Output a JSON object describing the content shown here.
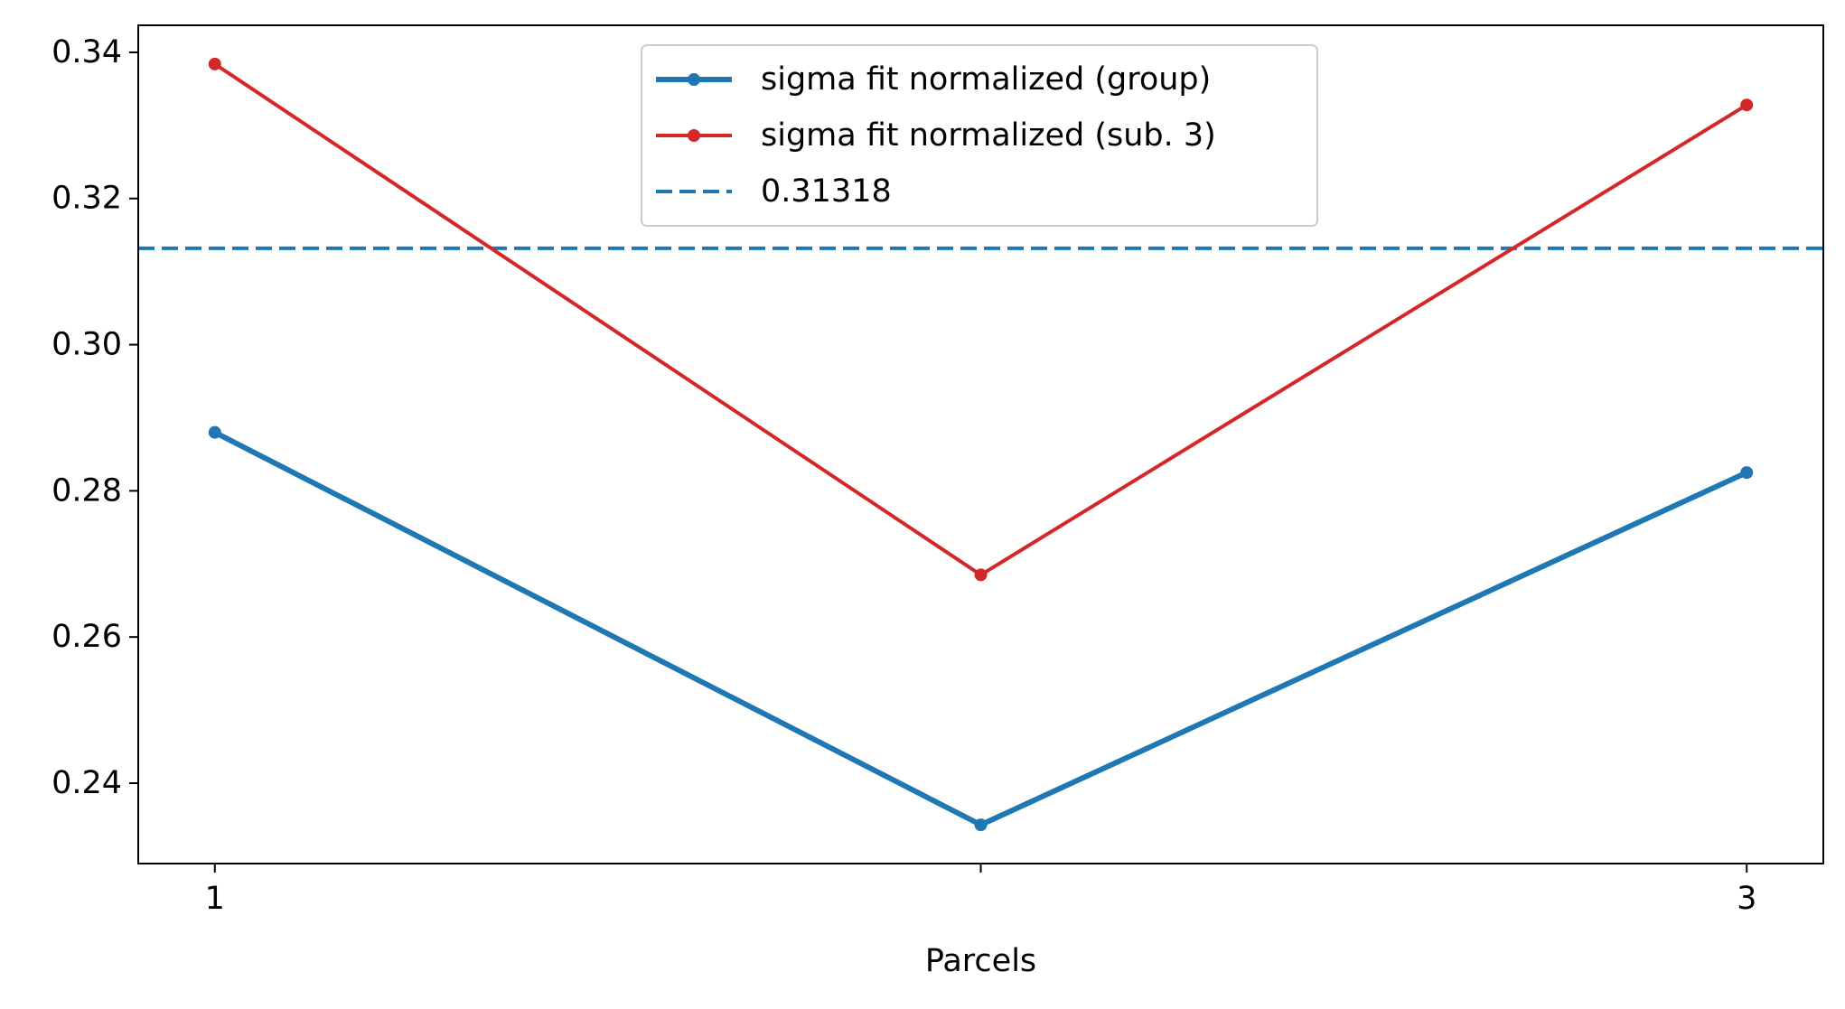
{
  "chart_data": {
    "type": "line",
    "title": "",
    "xlabel": "Parcels",
    "ylabel": "",
    "x": [
      1,
      2,
      3
    ],
    "xticks": [
      1,
      2,
      3
    ],
    "xtick_labels": [
      "1",
      "",
      "3"
    ],
    "xlim": [
      0.9,
      3.1
    ],
    "ylim": [
      0.229,
      0.3437
    ],
    "yticks": [
      0.24,
      0.26,
      0.28,
      0.3,
      0.32,
      0.34
    ],
    "ytick_labels": [
      "0.24",
      "0.26",
      "0.28",
      "0.30",
      "0.32",
      "0.34"
    ],
    "grid": false,
    "legend_position": "upper center",
    "series": [
      {
        "name": "sigma fit normalized (group)",
        "values": [
          0.288,
          0.2343,
          0.2825
        ],
        "color": "#1f77b4",
        "style": "solid",
        "marker": "dot",
        "thickness": "thick"
      },
      {
        "name": "sigma fit normalized (sub. 3)",
        "values": [
          0.3384,
          0.2685,
          0.3328
        ],
        "color": "#d62728",
        "style": "solid",
        "marker": "dot",
        "thickness": "normal"
      }
    ],
    "hlines": [
      {
        "name": "0.31318",
        "value": 0.31318,
        "color": "#1f77b4",
        "style": "dashed"
      }
    ]
  }
}
